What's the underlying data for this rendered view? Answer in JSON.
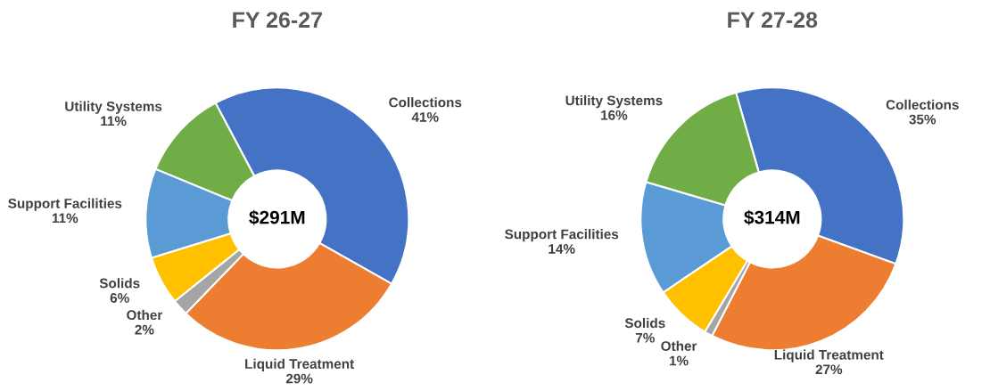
{
  "chart_data": [
    {
      "type": "donut",
      "title": "FY 26-27",
      "categories": [
        "Collections",
        "Liquid Treatment",
        "Other",
        "Solids",
        "Support Facilities",
        "Utility Systems"
      ],
      "values": [
        41,
        29,
        2,
        6,
        11,
        11
      ],
      "value_labels": [
        "41%",
        "29%",
        "2%",
        "6%",
        "11%",
        "11%"
      ],
      "colors": [
        "#4472c4",
        "#ed7d31",
        "#a5a5a5",
        "#ffc000",
        "#5b9bd5",
        "#70ad47"
      ],
      "annotations": [
        "$291M"
      ],
      "legend": false
    },
    {
      "type": "donut",
      "title": "FY 27-28",
      "categories": [
        "Collections",
        "Liquid Treatment",
        "Other",
        "Solids",
        "Support Facilities",
        "Utility Systems"
      ],
      "values": [
        35,
        27,
        1,
        7,
        14,
        16
      ],
      "value_labels": [
        "35%",
        "27%",
        "1%",
        "7%",
        "14%",
        "16%"
      ],
      "colors": [
        "#4472c4",
        "#ed7d31",
        "#a5a5a5",
        "#ffc000",
        "#5b9bd5",
        "#70ad47"
      ],
      "annotations": [
        "$314M"
      ],
      "legend": false
    }
  ]
}
